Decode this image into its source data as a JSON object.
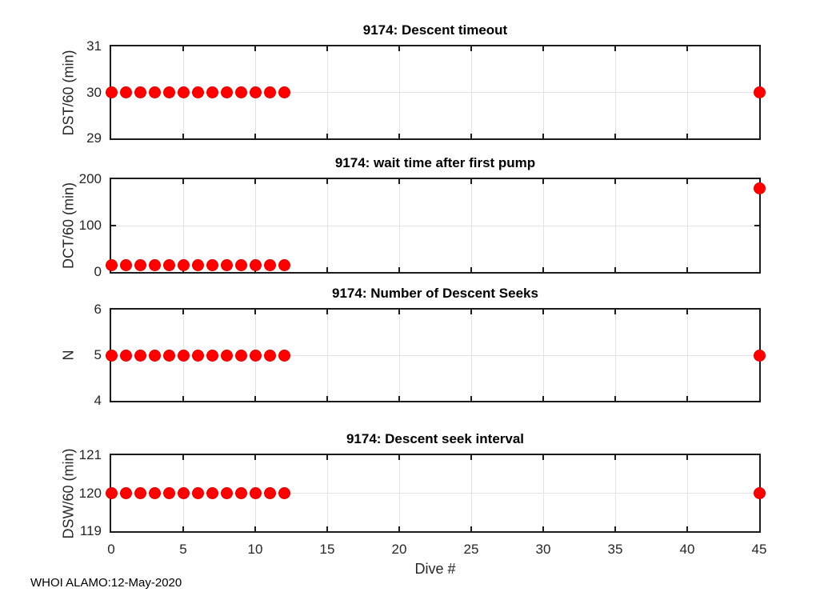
{
  "figure": {
    "xlabel": "Dive #",
    "watermark": "WHOI ALAMO:12-May-2020",
    "marker_color": "#ff0000",
    "marker_edge_color": "#e00000",
    "grid_color": "#e3e3e3",
    "axis_color": "#1c1c1c",
    "text_color": "#262626"
  },
  "chart_data": [
    {
      "type": "scatter",
      "title": "9174: Descent timeout",
      "ylabel": "DST/60 (min)",
      "ylim": [
        29,
        31
      ],
      "yticks": [
        29,
        30,
        31
      ],
      "xlim": [
        0,
        45
      ],
      "xticks": [
        0,
        5,
        10,
        15,
        20,
        25,
        30,
        35,
        40,
        45
      ],
      "grid": true,
      "x": [
        0,
        1,
        2,
        3,
        4,
        5,
        6,
        7,
        8,
        9,
        10,
        11,
        12,
        45
      ],
      "y": [
        30,
        30,
        30,
        30,
        30,
        30,
        30,
        30,
        30,
        30,
        30,
        30,
        30,
        30
      ]
    },
    {
      "type": "scatter",
      "title": "9174: wait time after first pump",
      "ylabel": "DCT/60 (min)",
      "ylim": [
        0,
        200
      ],
      "yticks": [
        0,
        100,
        200
      ],
      "xlim": [
        0,
        45
      ],
      "xticks": [
        0,
        5,
        10,
        15,
        20,
        25,
        30,
        35,
        40,
        45
      ],
      "grid": true,
      "x": [
        0,
        1,
        2,
        3,
        4,
        5,
        6,
        7,
        8,
        9,
        10,
        11,
        12,
        45
      ],
      "y": [
        15,
        15,
        15,
        15,
        15,
        15,
        15,
        15,
        15,
        15,
        15,
        15,
        15,
        180
      ]
    },
    {
      "type": "scatter",
      "title": "9174: Number of Descent Seeks",
      "ylabel": "N",
      "ylim": [
        4,
        6
      ],
      "yticks": [
        4,
        5,
        6
      ],
      "xlim": [
        0,
        45
      ],
      "xticks": [
        0,
        5,
        10,
        15,
        20,
        25,
        30,
        35,
        40,
        45
      ],
      "grid": true,
      "x": [
        0,
        1,
        2,
        3,
        4,
        5,
        6,
        7,
        8,
        9,
        10,
        11,
        12,
        45
      ],
      "y": [
        5,
        5,
        5,
        5,
        5,
        5,
        5,
        5,
        5,
        5,
        5,
        5,
        5,
        5
      ]
    },
    {
      "type": "scatter",
      "title": "9174: Descent seek interval",
      "ylabel": "DSW/60 (min)",
      "ylim": [
        119,
        121
      ],
      "yticks": [
        119,
        120,
        121
      ],
      "xlim": [
        0,
        45
      ],
      "xticks": [
        0,
        5,
        10,
        15,
        20,
        25,
        30,
        35,
        40,
        45
      ],
      "xticklabels": [
        "0",
        "5",
        "10",
        "15",
        "20",
        "25",
        "30",
        "35",
        "40",
        "45"
      ],
      "xlabel": "Dive #",
      "grid": true,
      "x": [
        0,
        1,
        2,
        3,
        4,
        5,
        6,
        7,
        8,
        9,
        10,
        11,
        12,
        45
      ],
      "y": [
        120,
        120,
        120,
        120,
        120,
        120,
        120,
        120,
        120,
        120,
        120,
        120,
        120,
        120
      ]
    }
  ]
}
